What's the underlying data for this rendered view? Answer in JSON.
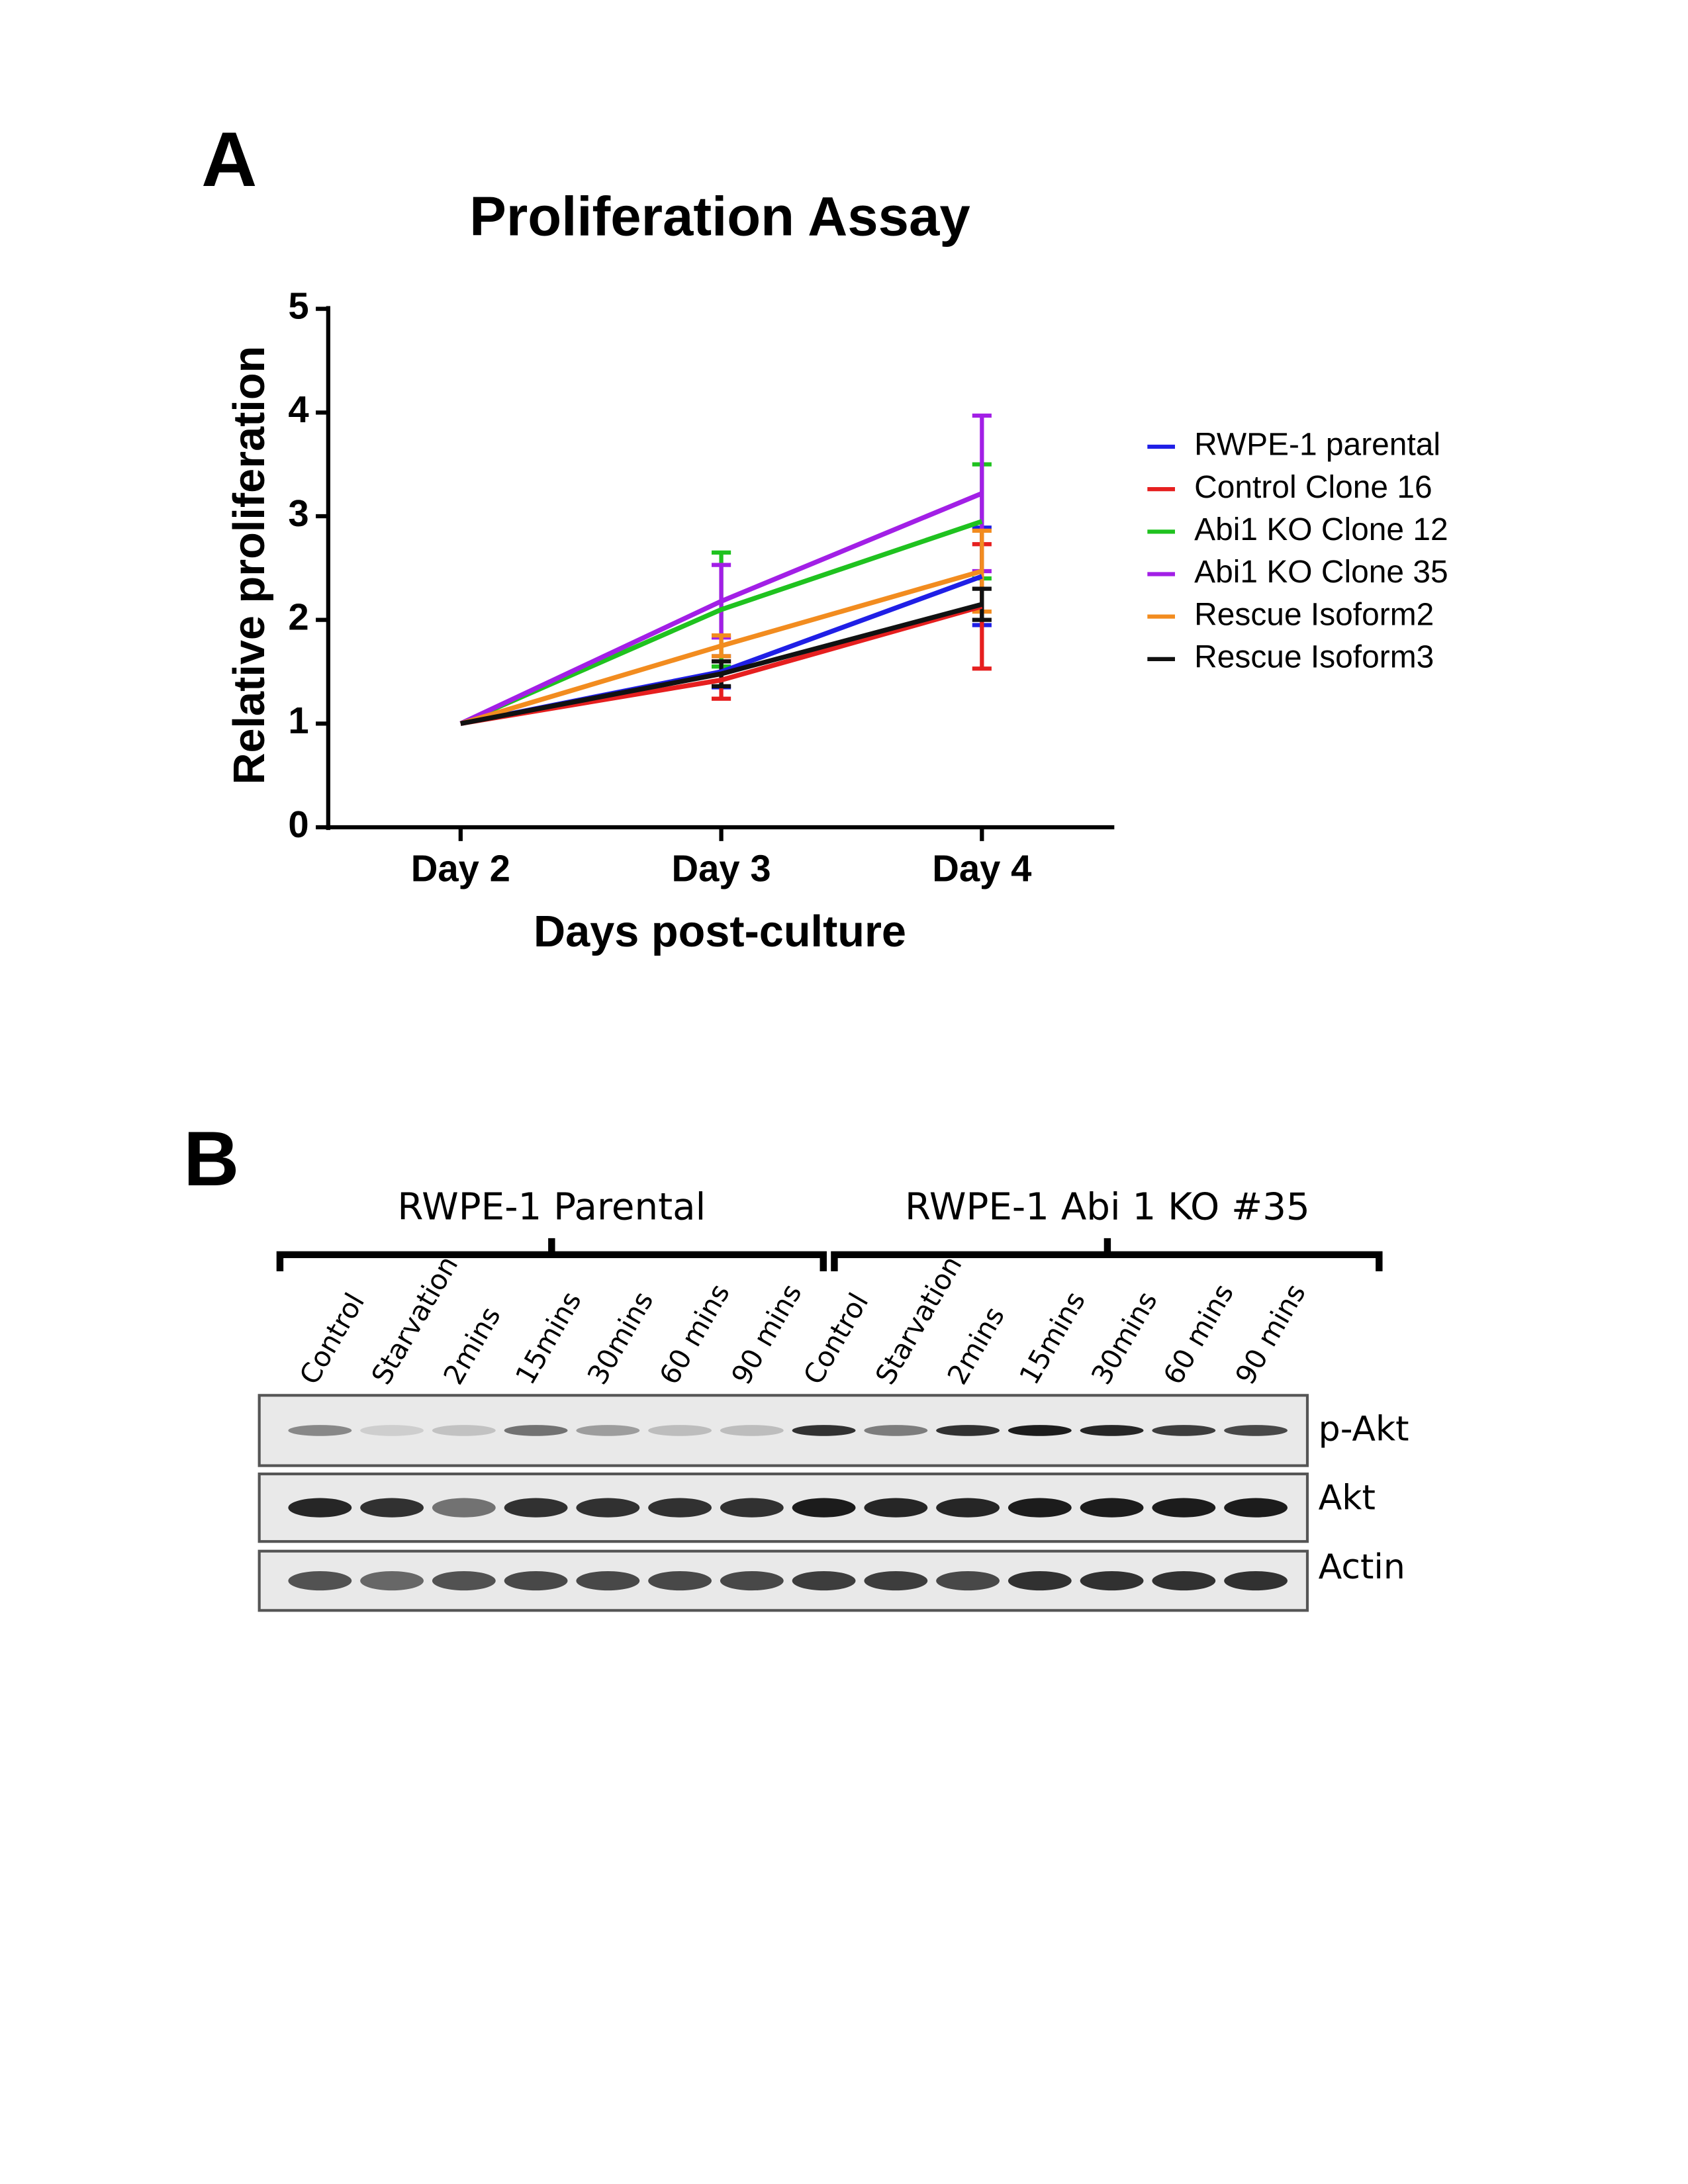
{
  "panel_a": {
    "label": "A"
  },
  "chart_data": {
    "type": "line",
    "title": "Proliferation Assay",
    "x_label": "Days post-culture",
    "y_label": "Relative proliferation",
    "categories": [
      "Day 2",
      "Day 3",
      "Day 4"
    ],
    "ylim": [
      0,
      5
    ],
    "yticks": [
      0,
      1,
      2,
      3,
      4,
      5
    ],
    "grid": false,
    "legend": "right",
    "series": [
      {
        "name": "RWPE-1 parental",
        "color": "#1f1fe6",
        "values": [
          1,
          1.5,
          2.42
        ],
        "errors": [
          null,
          0.15,
          0.47
        ]
      },
      {
        "name": "Control Clone 16",
        "color": "#e61f1f",
        "values": [
          1,
          1.42,
          2.13
        ],
        "errors": [
          null,
          0.18,
          0.6
        ]
      },
      {
        "name": "Abi1 KO Clone 12",
        "color": "#1fc21f",
        "values": [
          1,
          2.1,
          2.95
        ],
        "errors": [
          null,
          0.55,
          0.55
        ]
      },
      {
        "name": "Abi1 KO Clone 35",
        "color": "#a21fe6",
        "values": [
          1,
          2.18,
          3.22
        ],
        "errors": [
          null,
          0.35,
          0.75
        ]
      },
      {
        "name": "Rescue Isoform2",
        "color": "#f28c1f",
        "values": [
          1,
          1.75,
          2.47
        ],
        "errors": [
          null,
          0.1,
          0.39
        ]
      },
      {
        "name": "Rescue Isoform3",
        "color": "#111111",
        "values": [
          1,
          1.48,
          2.15
        ],
        "errors": [
          null,
          0.12,
          0.15
        ]
      }
    ]
  },
  "panel_b": {
    "label": "B"
  },
  "blot": {
    "groups": [
      {
        "label": "RWPE-1 Parental"
      },
      {
        "label": "RWPE-1 Abi 1 KO #35"
      }
    ],
    "lanes": [
      "Control",
      "Starvation",
      "2mins",
      "15mins",
      "30mins",
      "60 mins",
      "90 mins",
      "Control",
      "Starvation",
      "2mins",
      "15mins",
      "30mins",
      "60 mins",
      "90 mins"
    ],
    "rows": [
      "p-Akt",
      "Akt",
      "Actin"
    ]
  }
}
